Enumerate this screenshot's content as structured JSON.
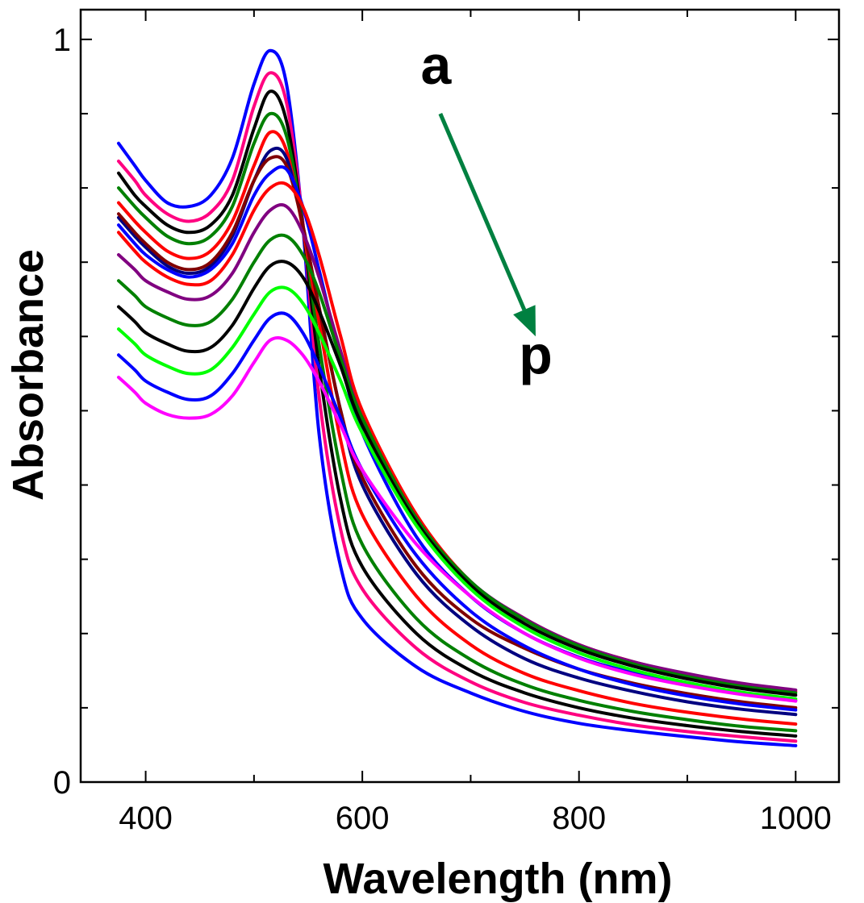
{
  "chart_data": {
    "type": "line",
    "title": "",
    "xlabel": "Wavelength (nm)",
    "ylabel": "Absorbance",
    "xlim": [
      340,
      1040
    ],
    "ylim": [
      0,
      1.04
    ],
    "xticks": [
      400,
      600,
      800,
      1000
    ],
    "xtick_labels": [
      "400",
      "600",
      "800",
      "1000"
    ],
    "x_minor_ticks": [
      500,
      700,
      900
    ],
    "yticks": [
      0,
      1
    ],
    "ytick_labels": [
      "0",
      "1"
    ],
    "y_minor_ticks": [
      0.1,
      0.2,
      0.3,
      0.4,
      0.5,
      0.6,
      0.7,
      0.8,
      0.9
    ],
    "grid": false,
    "legend": "none",
    "x": [
      375,
      390,
      400,
      420,
      440,
      460,
      480,
      500,
      515,
      530,
      545,
      560,
      580,
      600,
      650,
      700,
      750,
      800,
      850,
      900,
      950,
      1000
    ],
    "series": [
      {
        "color": "#0000ff",
        "values": [
          0.86,
          0.83,
          0.81,
          0.78,
          0.775,
          0.79,
          0.84,
          0.94,
          0.985,
          0.94,
          0.75,
          0.47,
          0.29,
          0.22,
          0.155,
          0.12,
          0.095,
          0.079,
          0.069,
          0.061,
          0.054,
          0.049
        ]
      },
      {
        "color": "#ff0080",
        "values": [
          0.836,
          0.81,
          0.79,
          0.765,
          0.755,
          0.767,
          0.81,
          0.91,
          0.955,
          0.915,
          0.755,
          0.52,
          0.34,
          0.26,
          0.18,
          0.135,
          0.107,
          0.09,
          0.077,
          0.068,
          0.061,
          0.055
        ]
      },
      {
        "color": "#000000",
        "values": [
          0.82,
          0.79,
          0.775,
          0.75,
          0.74,
          0.75,
          0.79,
          0.88,
          0.93,
          0.89,
          0.75,
          0.56,
          0.38,
          0.29,
          0.2,
          0.15,
          0.12,
          0.1,
          0.086,
          0.076,
          0.068,
          0.062
        ]
      },
      {
        "color": "#008000",
        "values": [
          0.8,
          0.775,
          0.76,
          0.735,
          0.725,
          0.735,
          0.775,
          0.86,
          0.9,
          0.87,
          0.75,
          0.59,
          0.42,
          0.32,
          0.22,
          0.165,
          0.131,
          0.11,
          0.095,
          0.084,
          0.075,
          0.069
        ]
      },
      {
        "color": "#ff0000",
        "values": [
          0.78,
          0.755,
          0.74,
          0.715,
          0.705,
          0.715,
          0.755,
          0.83,
          0.875,
          0.85,
          0.745,
          0.62,
          0.46,
          0.36,
          0.25,
          0.185,
          0.146,
          0.123,
          0.106,
          0.094,
          0.085,
          0.078
        ]
      },
      {
        "color": "#000080",
        "values": [
          0.76,
          0.735,
          0.72,
          0.695,
          0.685,
          0.695,
          0.735,
          0.81,
          0.85,
          0.84,
          0.75,
          0.64,
          0.5,
          0.4,
          0.28,
          0.21,
          0.166,
          0.14,
          0.122,
          0.108,
          0.098,
          0.091
        ]
      },
      {
        "color": "#800000",
        "values": [
          0.765,
          0.74,
          0.725,
          0.7,
          0.69,
          0.7,
          0.74,
          0.81,
          0.84,
          0.83,
          0.75,
          0.64,
          0.5,
          0.41,
          0.29,
          0.22,
          0.18,
          0.152,
          0.133,
          0.119,
          0.108,
          0.1
        ]
      },
      {
        "color": "#0000ff",
        "values": [
          0.75,
          0.725,
          0.71,
          0.69,
          0.68,
          0.69,
          0.725,
          0.79,
          0.82,
          0.825,
          0.775,
          0.69,
          0.57,
          0.47,
          0.33,
          0.25,
          0.2,
          0.168,
          0.147,
          0.131,
          0.119,
          0.11
        ]
      },
      {
        "color": "#ff0000",
        "values": [
          0.74,
          0.715,
          0.7,
          0.68,
          0.67,
          0.675,
          0.71,
          0.77,
          0.8,
          0.805,
          0.775,
          0.71,
          0.6,
          0.5,
          0.36,
          0.27,
          0.22,
          0.185,
          0.162,
          0.145,
          0.132,
          0.122
        ]
      },
      {
        "color": "#800080",
        "values": [
          0.71,
          0.69,
          0.675,
          0.66,
          0.65,
          0.655,
          0.685,
          0.74,
          0.77,
          0.775,
          0.74,
          0.68,
          0.58,
          0.49,
          0.355,
          0.27,
          0.22,
          0.185,
          0.162,
          0.146,
          0.133,
          0.124
        ]
      },
      {
        "color": "#008000",
        "values": [
          0.675,
          0.655,
          0.64,
          0.625,
          0.615,
          0.62,
          0.65,
          0.7,
          0.73,
          0.735,
          0.71,
          0.66,
          0.57,
          0.49,
          0.355,
          0.27,
          0.218,
          0.183,
          0.159,
          0.142,
          0.129,
          0.12
        ]
      },
      {
        "color": "#000000",
        "values": [
          0.64,
          0.62,
          0.605,
          0.59,
          0.58,
          0.585,
          0.615,
          0.665,
          0.695,
          0.7,
          0.68,
          0.635,
          0.56,
          0.48,
          0.35,
          0.265,
          0.213,
          0.179,
          0.156,
          0.139,
          0.126,
          0.117
        ]
      },
      {
        "color": "#00ff00",
        "values": [
          0.61,
          0.59,
          0.575,
          0.56,
          0.55,
          0.555,
          0.585,
          0.63,
          0.66,
          0.665,
          0.645,
          0.605,
          0.54,
          0.47,
          0.345,
          0.26,
          0.208,
          0.174,
          0.151,
          0.134,
          0.121,
          0.112
        ]
      },
      {
        "color": "#0000ff",
        "values": [
          0.575,
          0.555,
          0.54,
          0.525,
          0.515,
          0.52,
          0.55,
          0.595,
          0.625,
          0.63,
          0.605,
          0.56,
          0.49,
          0.42,
          0.305,
          0.23,
          0.183,
          0.152,
          0.131,
          0.116,
          0.105,
          0.097
        ]
      },
      {
        "color": "#ff00ff",
        "values": [
          0.545,
          0.525,
          0.51,
          0.495,
          0.49,
          0.495,
          0.52,
          0.565,
          0.595,
          0.595,
          0.575,
          0.54,
          0.48,
          0.42,
          0.32,
          0.25,
          0.2,
          0.167,
          0.145,
          0.13,
          0.118,
          0.109
        ]
      }
    ],
    "annotations": [
      {
        "text": "a",
        "x": 668,
        "y": 0.94
      },
      {
        "text": "p",
        "x": 760,
        "y": 0.55
      }
    ],
    "arrow": {
      "color": "#008040",
      "from": [
        672,
        0.9
      ],
      "to": [
        760,
        0.6
      ]
    }
  }
}
